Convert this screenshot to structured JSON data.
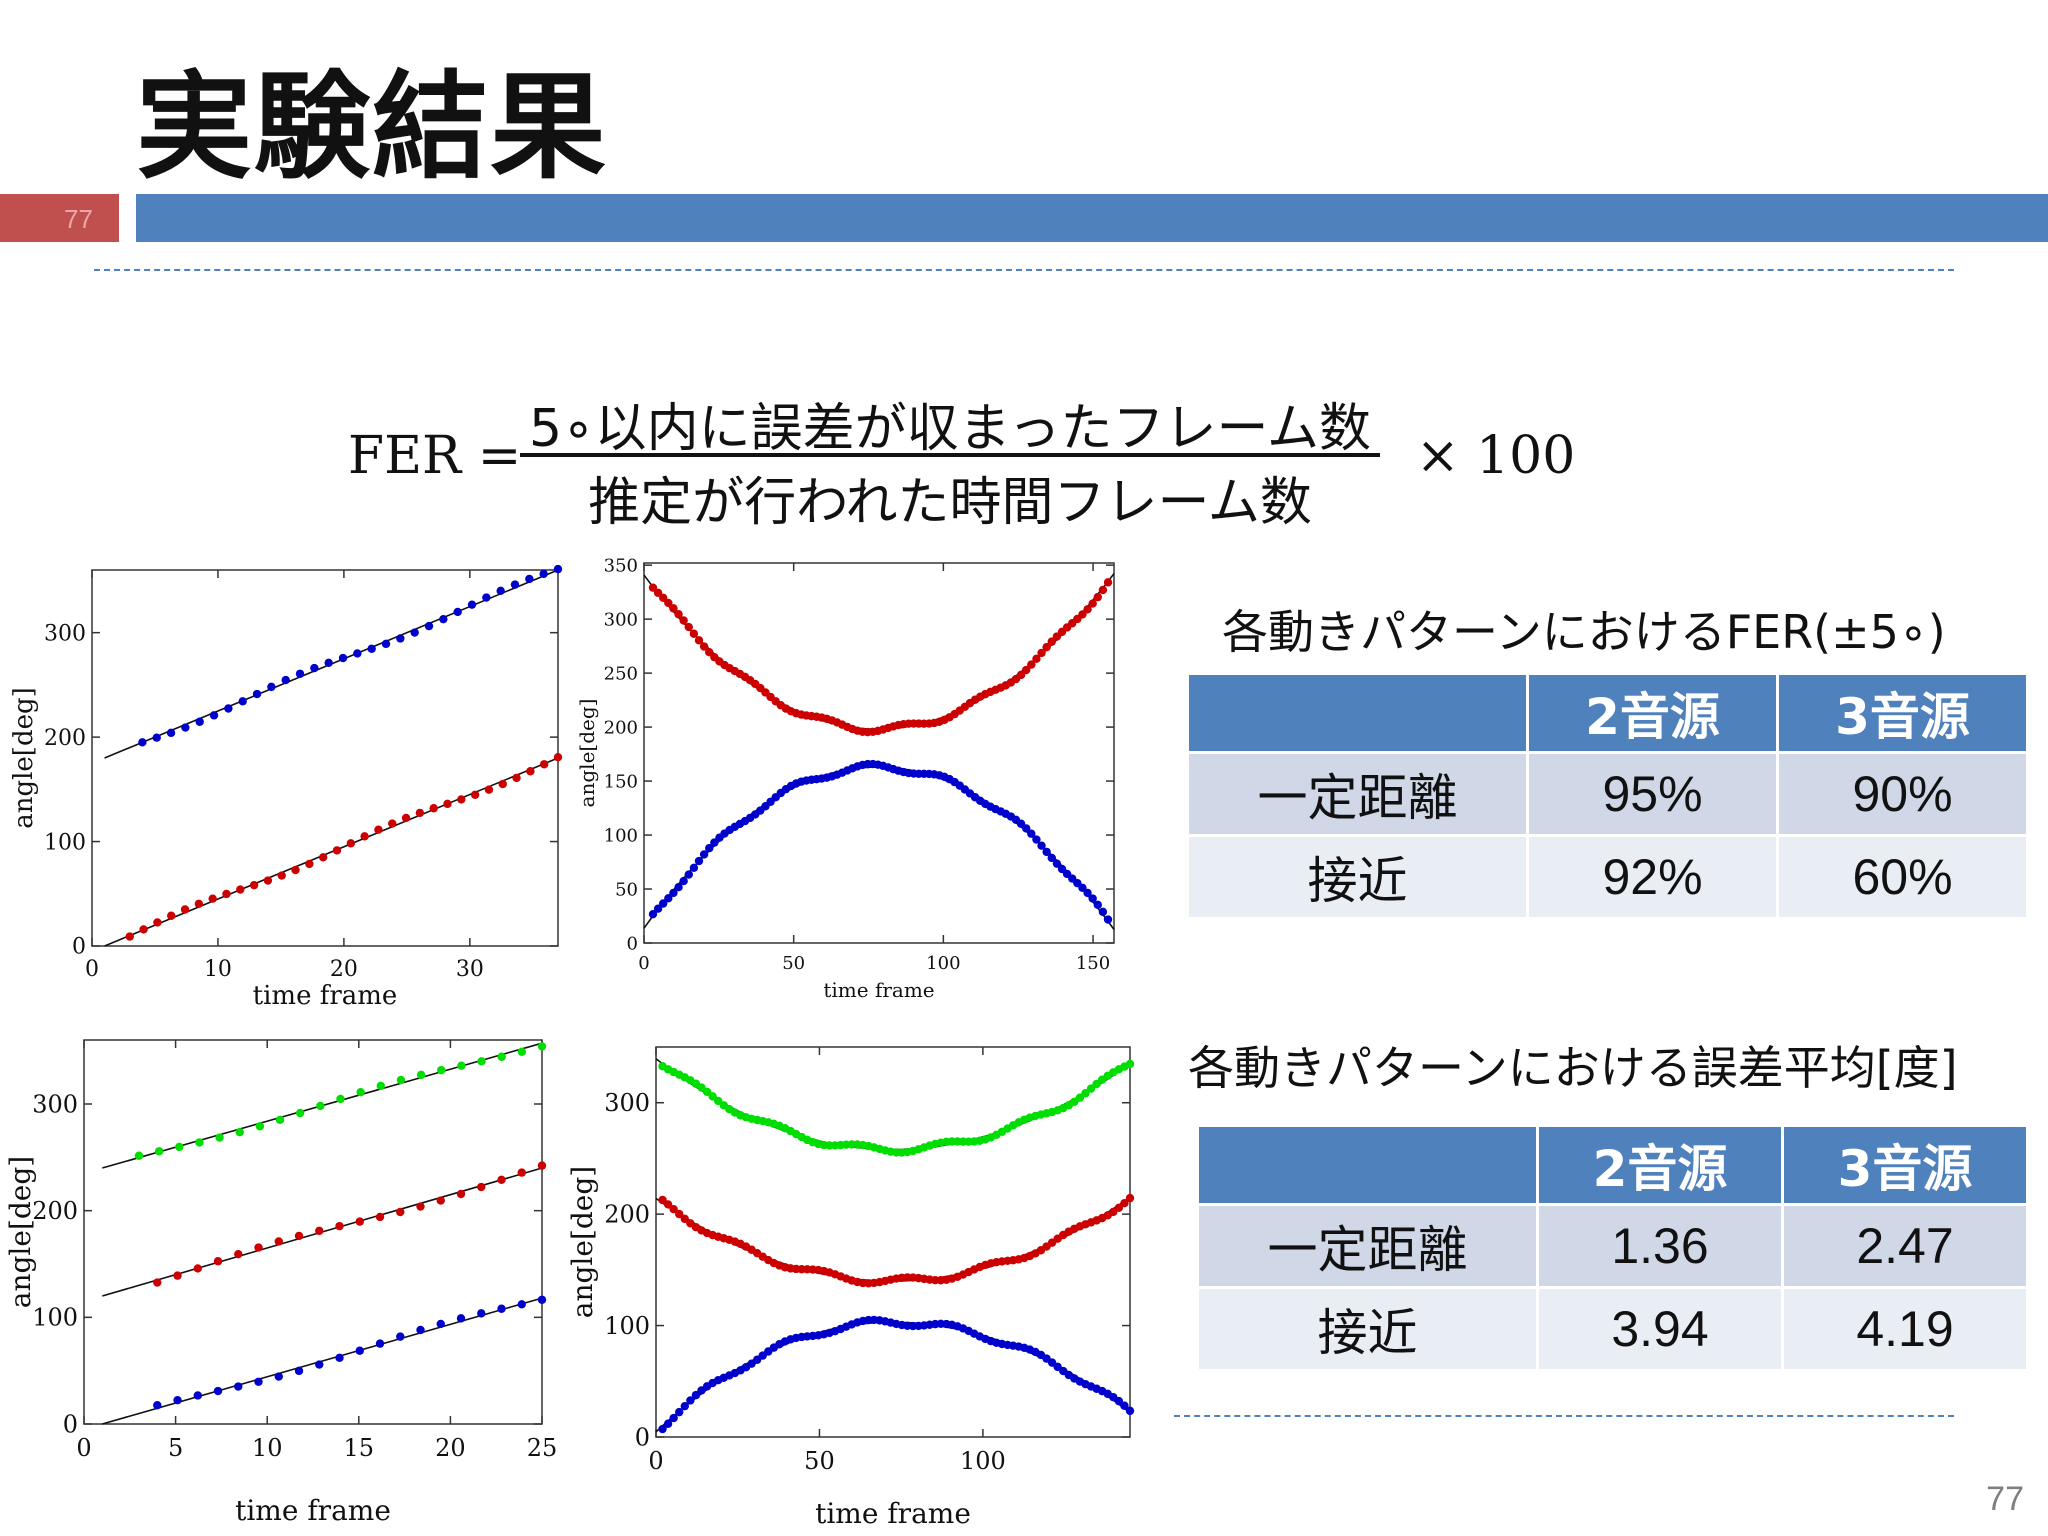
{
  "slide": {
    "title": "実験結果",
    "slide_number_tab": "77",
    "page_number": "77"
  },
  "formula": {
    "lhs": "FER =",
    "numerator": "5∘以内に誤差が収まったフレーム数",
    "denominator": "推定が行われた時間フレーム数",
    "rhs": "× 100"
  },
  "colors": {
    "blue": "#0000cc",
    "red": "#cc0000",
    "green": "#00dd00",
    "accent": "#4f81bd",
    "accent_red": "#c0504d"
  },
  "chart_data": [
    {
      "type": "scatter",
      "xlabel": "time frame",
      "ylabel": "angle[deg]",
      "xlim": [
        0,
        37
      ],
      "ylim": [
        0,
        360
      ],
      "xticks": [
        0,
        10,
        20,
        30
      ],
      "yticks": [
        0,
        100,
        200,
        300
      ],
      "series": [
        {
          "color": "#0000cc",
          "x0": 4,
          "x1": 37,
          "y0": 200,
          "y1": 360,
          "lx0": 1,
          "ly0": 180,
          "n": 30
        },
        {
          "color": "#cc0000",
          "x0": 3,
          "x1": 37,
          "y0": 10,
          "y1": 180,
          "lx0": 1,
          "ly0": 0,
          "n": 32
        }
      ]
    },
    {
      "type": "scatter",
      "xlabel": "time frame",
      "ylabel": "angle[deg]",
      "xlim": [
        0,
        157
      ],
      "ylim": [
        0,
        352
      ],
      "xticks": [
        0,
        50,
        100,
        150
      ],
      "yticks": [
        0,
        50,
        100,
        150,
        200,
        250,
        300,
        350
      ],
      "series": [
        {
          "color": "#cc0000",
          "shape": "U",
          "x0": 3,
          "x1": 155,
          "y0": 330,
          "y1": 335,
          "vx": 78,
          "vy": 198,
          "n": 90
        },
        {
          "color": "#0000cc",
          "shape": "arch",
          "x0": 3,
          "x1": 155,
          "y0": 25,
          "y1": 20,
          "vx": 78,
          "vy": 163,
          "n": 90
        }
      ]
    },
    {
      "type": "scatter",
      "xlabel": "time frame",
      "ylabel": "angle[deg]",
      "xlim": [
        0,
        25
      ],
      "ylim": [
        0,
        360
      ],
      "xticks": [
        0,
        5,
        10,
        15,
        20,
        25
      ],
      "yticks": [
        0,
        100,
        200,
        300
      ],
      "series": [
        {
          "color": "#00dd00",
          "x0": 3,
          "x1": 25,
          "y0": 250,
          "y1": 357,
          "lx0": 1,
          "ly0": 240,
          "n": 21
        },
        {
          "color": "#cc0000",
          "x0": 4,
          "x1": 25,
          "y0": 130,
          "y1": 240,
          "lx0": 1,
          "ly0": 120,
          "n": 20
        },
        {
          "color": "#0000cc",
          "x0": 4,
          "x1": 25,
          "y0": 10,
          "y1": 118,
          "lx0": 1,
          "ly0": 0,
          "n": 20
        }
      ]
    },
    {
      "type": "scatter",
      "xlabel": "time frame",
      "ylabel": "angle[deg]",
      "xlim": [
        0,
        145
      ],
      "ylim": [
        0,
        350
      ],
      "xticks": [
        0,
        50,
        100
      ],
      "yticks": [
        0,
        100,
        200,
        300
      ],
      "series": [
        {
          "color": "#00dd00",
          "shape": "U",
          "x0": 2,
          "x1": 145,
          "y0": 335,
          "y1": 335,
          "vx": 72,
          "vy": 258,
          "n": 85
        },
        {
          "color": "#cc0000",
          "shape": "U",
          "x0": 2,
          "x1": 145,
          "y0": 210,
          "y1": 215,
          "vx": 72,
          "vy": 140,
          "n": 85
        },
        {
          "color": "#0000cc",
          "shape": "arch",
          "x0": 2,
          "x1": 145,
          "y0": 10,
          "y1": 22,
          "vx": 72,
          "vy": 103,
          "n": 85
        }
      ]
    }
  ],
  "tables": [
    {
      "title": "各動きパターンにおけるFER(±5∘)",
      "headers": [
        "",
        "2音源",
        "3音源"
      ],
      "rows": [
        [
          "一定距離",
          "95%",
          "90%"
        ],
        [
          "接近",
          "92%",
          "60%"
        ]
      ]
    },
    {
      "title": "各動きパターンにおける誤差平均[度]",
      "headers": [
        "",
        "2音源",
        "3音源"
      ],
      "rows": [
        [
          "一定距離",
          "1.36",
          "2.47"
        ],
        [
          "接近",
          "3.94",
          "4.19"
        ]
      ]
    }
  ]
}
